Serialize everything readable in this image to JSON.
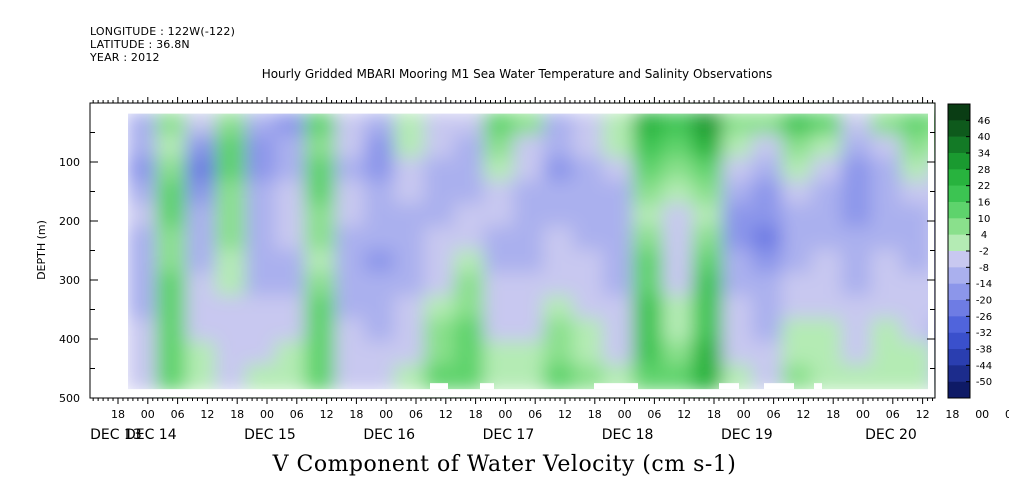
{
  "header": {
    "longitude": "LONGITUDE : 122W(-122)",
    "latitude": "LATITUDE : 36.8N",
    "year": "YEAR : 2012"
  },
  "title": "Hourly Gridded MBARI Mooring M1 Sea Water Temperature and Salinity Observations",
  "footer": "V Component of Water Velocity (cm s-1)",
  "chart_data": {
    "type": "heatmap",
    "variable": "V Component of Water Velocity (cm s-1)",
    "ylabel": "DEPTH (m)",
    "ylim": [
      500,
      0
    ],
    "y_ticks": [
      100,
      200,
      300,
      400,
      500
    ],
    "y_tick_labels": [
      "100",
      "200",
      "300",
      "400",
      "500"
    ],
    "x_hour_labels": [
      "18",
      "00",
      "06",
      "12",
      "18",
      "00",
      "06",
      "12",
      "18",
      "00",
      "06",
      "12",
      "18",
      "00",
      "06",
      "12",
      "18",
      "00",
      "06",
      "12",
      "18",
      "00",
      "06",
      "12",
      "18",
      "00",
      "06",
      "12",
      "18",
      "00",
      "06",
      "12"
    ],
    "x_day_labels": [
      "DEC 13",
      "DEC 14",
      "DEC 15",
      "DEC 16",
      "DEC 17",
      "DEC 18",
      "DEC 19",
      "DEC 20"
    ],
    "colorbar_labels": [
      "46",
      "40",
      "34",
      "28",
      "22",
      "16",
      "10",
      "4",
      "-2",
      "-8",
      "-14",
      "-20",
      "-26",
      "-32",
      "-38",
      "-44",
      "-50"
    ],
    "colorbar_colors": [
      "#0a3d14",
      "#0e5a1c",
      "#137a26",
      "#1a9a30",
      "#28b33e",
      "#3cc452",
      "#5ed36c",
      "#8ae08c",
      "#b4ebb4",
      "#c8c8f0",
      "#aab0ee",
      "#8c96ea",
      "#6e7ce4",
      "#5064dc",
      "#3a50cc",
      "#2a3eb0",
      "#1c2c8c",
      "#0e1a66"
    ],
    "columns_time_hours": [
      15,
      21,
      27,
      33,
      39,
      45,
      51,
      57,
      63,
      69,
      75,
      81,
      87,
      93,
      99,
      105,
      111,
      117,
      123,
      129,
      135,
      141,
      147,
      153,
      159,
      165,
      171,
      177,
      183,
      189
    ],
    "depth_rows_m": [
      40,
      80,
      120,
      160,
      200,
      240,
      280,
      320,
      360,
      400,
      440,
      480
    ],
    "values": [
      [
        -10,
        4,
        -8,
        6,
        -14,
        -20,
        10,
        -6,
        -12,
        2,
        -4,
        -8,
        12,
        4,
        -10,
        -6,
        2,
        22,
        16,
        28,
        8,
        4,
        16,
        10,
        -8,
        4,
        12,
        8,
        6,
        10
      ],
      [
        -14,
        2,
        -20,
        10,
        -18,
        -14,
        4,
        -8,
        -16,
        -2,
        -6,
        -12,
        4,
        -4,
        -14,
        -8,
        -2,
        16,
        10,
        22,
        2,
        -4,
        6,
        -2,
        -12,
        -6,
        4,
        2,
        -4,
        6
      ],
      [
        -18,
        8,
        -24,
        14,
        -20,
        -10,
        10,
        -10,
        -18,
        -6,
        -10,
        -14,
        -2,
        -8,
        -16,
        -12,
        -6,
        10,
        4,
        14,
        -6,
        -10,
        -2,
        -8,
        -16,
        -12,
        -2,
        -4,
        -8,
        2
      ],
      [
        -12,
        12,
        -16,
        8,
        -14,
        -6,
        12,
        -8,
        -14,
        -8,
        -12,
        -10,
        -6,
        -10,
        -12,
        -14,
        -10,
        4,
        -2,
        6,
        -12,
        -16,
        -8,
        -12,
        -18,
        -14,
        -8,
        -6,
        -10,
        -2
      ],
      [
        -8,
        10,
        -12,
        6,
        -10,
        -4,
        8,
        -6,
        -10,
        -12,
        -10,
        -8,
        -8,
        -12,
        -10,
        -12,
        -12,
        -2,
        -6,
        0,
        -16,
        -20,
        -12,
        -14,
        -16,
        -12,
        -10,
        -8,
        -6,
        2
      ],
      [
        -10,
        6,
        -14,
        4,
        -12,
        -8,
        4,
        -10,
        -12,
        -14,
        -8,
        -6,
        -10,
        -14,
        -8,
        -10,
        -14,
        4,
        -8,
        6,
        -18,
        -22,
        -14,
        -12,
        -14,
        -10,
        -12,
        -6,
        4,
        6
      ],
      [
        -12,
        8,
        -10,
        2,
        -14,
        -12,
        2,
        -12,
        -16,
        -12,
        -6,
        2,
        -12,
        -10,
        -6,
        -8,
        -12,
        10,
        -6,
        12,
        -14,
        -18,
        -10,
        -8,
        -12,
        -8,
        -10,
        -4,
        8,
        10
      ],
      [
        -14,
        10,
        -8,
        -2,
        -10,
        -10,
        6,
        -14,
        -14,
        -10,
        -4,
        6,
        -8,
        -8,
        -4,
        -6,
        -10,
        14,
        -4,
        16,
        -10,
        -14,
        -6,
        -6,
        -10,
        -6,
        -8,
        -6,
        4,
        6
      ],
      [
        -10,
        12,
        -6,
        -4,
        -8,
        -6,
        10,
        -10,
        -12,
        -8,
        -2,
        8,
        -6,
        -6,
        2,
        -4,
        -8,
        16,
        -2,
        18,
        -8,
        -12,
        -4,
        -4,
        -8,
        -4,
        -6,
        -8,
        0,
        8
      ],
      [
        -8,
        14,
        -4,
        -6,
        -6,
        -4,
        14,
        -8,
        -10,
        -6,
        4,
        10,
        -4,
        -4,
        6,
        -2,
        -6,
        18,
        2,
        20,
        -6,
        -10,
        -2,
        -2,
        -6,
        -2,
        -4,
        -10,
        -2,
        10
      ],
      [
        -6,
        12,
        -2,
        -8,
        -4,
        -2,
        12,
        -6,
        -8,
        -4,
        8,
        12,
        -2,
        -2,
        8,
        2,
        -4,
        16,
        6,
        22,
        -4,
        -8,
        2,
        0,
        -4,
        0,
        -2,
        -8,
        2,
        12
      ],
      [
        -4,
        10,
        0,
        -6,
        -2,
        2,
        10,
        -4,
        -6,
        -2,
        10,
        14,
        0,
        2,
        10,
        4,
        -2,
        14,
        10,
        24,
        -2,
        -6,
        4,
        2,
        -2,
        2,
        0,
        -6,
        4,
        14
      ]
    ]
  }
}
